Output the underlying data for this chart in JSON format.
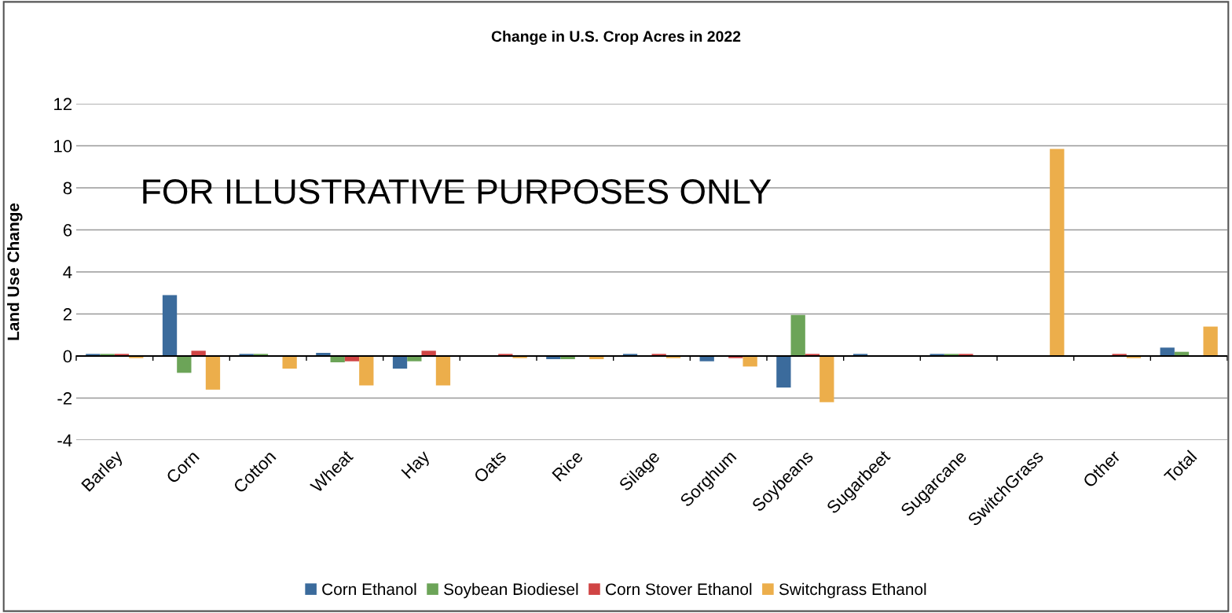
{
  "chart_data": {
    "type": "bar",
    "title": "Change in U.S. Crop Acres in 2022",
    "ylabel": "Land Use Change",
    "categories": [
      "Barley",
      "Corn",
      "Cotton",
      "Wheat",
      "Hay",
      "Oats",
      "Rice",
      "Silage",
      "Sorghum",
      "Soybeans",
      "Sugarbeet",
      "Sugarcane",
      "SwitchGrass",
      "Other",
      "Total"
    ],
    "series": [
      {
        "name": "Corn Ethanol",
        "color": "#3b6b9c",
        "values": [
          0.1,
          2.9,
          0.1,
          0.15,
          -0.6,
          0,
          -0.15,
          0.1,
          -0.25,
          -1.5,
          0.1,
          0.1,
          0,
          0,
          0.4
        ]
      },
      {
        "name": "Soybean Biodiesel",
        "color": "#6ca458",
        "values": [
          0.1,
          -0.8,
          0.1,
          -0.3,
          -0.25,
          0,
          -0.15,
          0,
          0,
          1.95,
          0,
          0.1,
          0,
          0,
          0.2
        ]
      },
      {
        "name": "Corn Stover Ethanol",
        "color": "#d04444",
        "values": [
          0.1,
          0.25,
          0,
          -0.25,
          0.25,
          0.1,
          0,
          0.1,
          -0.1,
          0.1,
          0,
          0.1,
          0,
          0.1,
          0
        ]
      },
      {
        "name": "Switchgrass Ethanol",
        "color": "#ecae4b",
        "values": [
          -0.1,
          -1.6,
          -0.6,
          -1.4,
          -1.4,
          -0.1,
          -0.15,
          -0.1,
          -0.5,
          -2.2,
          0,
          0,
          9.85,
          -0.1,
          1.4
        ]
      }
    ],
    "ylim": [
      -4,
      12
    ],
    "yticks": [
      -4,
      -2,
      0,
      2,
      4,
      6,
      8,
      10,
      12
    ],
    "grid": "y",
    "legend": "bottom",
    "annotations": [
      "FOR ILLUSTRATIVE PURPOSES ONLY"
    ]
  }
}
